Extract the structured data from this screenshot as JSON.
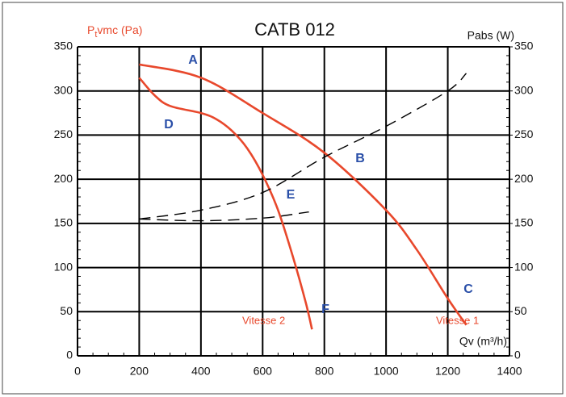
{
  "chart_data": {
    "type": "line",
    "title": "CATB 012",
    "y_label": {
      "main": "P",
      "sub": "t",
      "rest": "vmc (Pa)"
    },
    "y2_label": "Pabs (W)",
    "x_label": "Qv (m³/h)",
    "xlim": [
      0,
      1400
    ],
    "xticks": [
      0,
      200,
      400,
      600,
      800,
      1000,
      1200,
      1400
    ],
    "ylim": [
      0,
      350
    ],
    "yticks": [
      0,
      50,
      100,
      150,
      200,
      250,
      300,
      350
    ],
    "y2lim": [
      0,
      350
    ],
    "y2ticks": [
      0,
      50,
      100,
      150,
      200,
      250,
      300,
      350
    ],
    "grid": true,
    "series": [
      {
        "name": "Vitesse 1",
        "color": "#e8482c",
        "dash": false,
        "x": [
          200,
          400,
          600,
          800,
          1000,
          1100,
          1200,
          1260
        ],
        "values": [
          330,
          315,
          275,
          230,
          165,
          120,
          65,
          35
        ]
      },
      {
        "name": "Vitesse 2",
        "color": "#e8482c",
        "dash": false,
        "x": [
          200,
          250,
          300,
          400,
          450,
          500,
          550,
          600,
          650,
          700,
          740,
          760
        ],
        "values": [
          315,
          295,
          283,
          275,
          268,
          255,
          235,
          205,
          165,
          110,
          60,
          30
        ]
      },
      {
        "color": "#000000",
        "dash": true,
        "axis": "y2",
        "x": [
          200,
          400,
          600,
          800,
          1000,
          1200,
          1260
        ],
        "values": [
          155,
          165,
          185,
          225,
          260,
          300,
          320
        ]
      },
      {
        "color": "#000000",
        "dash": true,
        "axis": "y2",
        "x": [
          200,
          400,
          600,
          750
        ],
        "values": [
          155,
          153,
          156,
          163
        ]
      }
    ],
    "annotations": [
      "A",
      "B",
      "C",
      "D",
      "E",
      "F"
    ]
  }
}
